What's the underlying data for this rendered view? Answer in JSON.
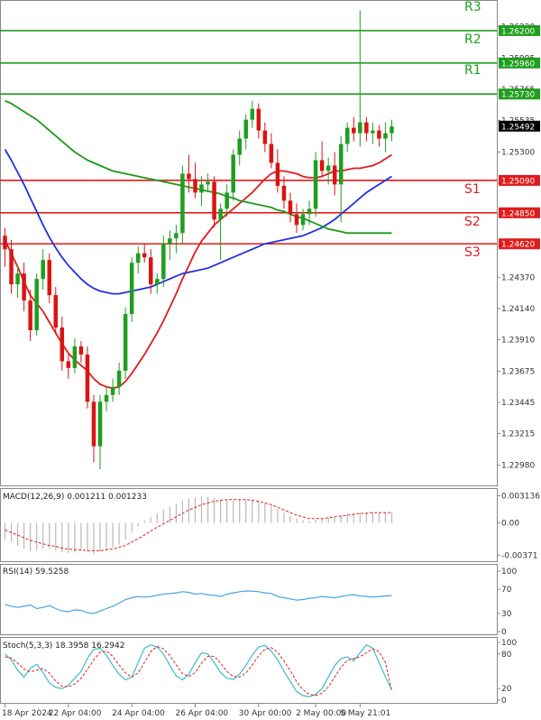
{
  "colors": {
    "bull": "#1f9e1f",
    "bear": "#d91414",
    "resistance": "#1f9e1f",
    "support": "#e01c1c",
    "ma_fast": "#e01c1c",
    "ma_mid": "#2030e0",
    "ma_slow": "#1a9a1a",
    "macd_hist": "#b8b8b8",
    "macd_signal": "#e01c1c",
    "rsi": "#4aa3e0",
    "stoch_main": "#3dbccc",
    "stoch_signal": "#e01c1c",
    "price_tag_bg": "#000000"
  },
  "chart_data": [
    {
      "type": "candlestick",
      "pane": "main",
      "ylim": [
        1.2285,
        1.264
      ],
      "y_ticks": [
        "1.26230",
        "1.25995",
        "1.25765",
        "1.25535",
        "1.25300",
        "1.25070",
        "1.24840",
        "1.24610",
        "1.24370",
        "1.24140",
        "1.23910",
        "1.23675",
        "1.23445",
        "1.23215",
        "1.22980"
      ],
      "current_price": "1.25492",
      "levels": [
        {
          "name": "R3",
          "value": 1.262,
          "label": "1.26200",
          "kind": "resistance"
        },
        {
          "name": "R2",
          "value": 1.2596,
          "label": "1.25960",
          "kind": "resistance"
        },
        {
          "name": "R1",
          "value": 1.2573,
          "label": "1.25730",
          "kind": "resistance"
        },
        {
          "name": "S1",
          "value": 1.2509,
          "label": "1.25090",
          "kind": "support"
        },
        {
          "name": "S2",
          "value": 1.2485,
          "label": "1.24850",
          "kind": "support"
        },
        {
          "name": "S3",
          "value": 1.2462,
          "label": "1.24620",
          "kind": "support"
        }
      ],
      "x_labels": [
        "18 Apr 2024",
        "22 Apr 04:00",
        "24 Apr 04:00",
        "26 Apr 04:00",
        "30 Apr 00:00",
        "2 May 00:00",
        "5 May 21:01"
      ],
      "candles": [
        [
          1.2468,
          1.2474,
          1.2445,
          1.2458
        ],
        [
          1.2458,
          1.2465,
          1.2425,
          1.2432
        ],
        [
          1.2432,
          1.2446,
          1.2422,
          1.244
        ],
        [
          1.244,
          1.2448,
          1.2412,
          1.242
        ],
        [
          1.242,
          1.2428,
          1.239,
          1.2398
        ],
        [
          1.2398,
          1.244,
          1.2394,
          1.2436
        ],
        [
          1.2436,
          1.2458,
          1.2428,
          1.245
        ],
        [
          1.245,
          1.2455,
          1.2418,
          1.2424
        ],
        [
          1.2424,
          1.243,
          1.2395,
          1.24
        ],
        [
          1.24,
          1.2408,
          1.2368,
          1.2375
        ],
        [
          1.2375,
          1.238,
          1.2362,
          1.237
        ],
        [
          1.237,
          1.2392,
          1.2366,
          1.2386
        ],
        [
          1.2386,
          1.239,
          1.2374,
          1.238
        ],
        [
          1.238,
          1.2386,
          1.234,
          1.2345
        ],
        [
          1.2345,
          1.235,
          1.23,
          1.2312
        ],
        [
          1.2312,
          1.235,
          1.2295,
          1.2345
        ],
        [
          1.2345,
          1.2356,
          1.2338,
          1.235
        ],
        [
          1.235,
          1.2362,
          1.2345,
          1.2356
        ],
        [
          1.2356,
          1.2374,
          1.235,
          1.2368
        ],
        [
          1.2368,
          1.2415,
          1.2362,
          1.241
        ],
        [
          1.241,
          1.2452,
          1.2404,
          1.2448
        ],
        [
          1.2448,
          1.246,
          1.244,
          1.2455
        ],
        [
          1.2455,
          1.2462,
          1.2448,
          1.2452
        ],
        [
          1.2452,
          1.2458,
          1.2425,
          1.2432
        ],
        [
          1.2432,
          1.244,
          1.2425,
          1.2436
        ],
        [
          1.2436,
          1.2468,
          1.243,
          1.2462
        ],
        [
          1.2462,
          1.2472,
          1.245,
          1.2466
        ],
        [
          1.2466,
          1.2476,
          1.2455,
          1.247
        ],
        [
          1.247,
          1.252,
          1.2462,
          1.2514
        ],
        [
          1.2514,
          1.2528,
          1.25,
          1.251
        ],
        [
          1.251,
          1.2522,
          1.2496,
          1.25
        ],
        [
          1.25,
          1.2512,
          1.249,
          1.2506
        ],
        [
          1.2506,
          1.2514,
          1.25,
          1.2508
        ],
        [
          1.2508,
          1.2512,
          1.2474,
          1.248
        ],
        [
          1.248,
          1.2492,
          1.245,
          1.2488
        ],
        [
          1.2488,
          1.2506,
          1.2482,
          1.25
        ],
        [
          1.25,
          1.2532,
          1.2494,
          1.2528
        ],
        [
          1.2528,
          1.2546,
          1.252,
          1.254
        ],
        [
          1.254,
          1.2558,
          1.2532,
          1.2554
        ],
        [
          1.2554,
          1.2568,
          1.2548,
          1.2562
        ],
        [
          1.2562,
          1.2566,
          1.254,
          1.2546
        ],
        [
          1.2546,
          1.2552,
          1.253,
          1.2536
        ],
        [
          1.2536,
          1.2544,
          1.2518,
          1.2522
        ],
        [
          1.2522,
          1.2532,
          1.25,
          1.2505
        ],
        [
          1.2505,
          1.2512,
          1.2488,
          1.2494
        ],
        [
          1.2494,
          1.25,
          1.2478,
          1.2484
        ],
        [
          1.2484,
          1.2492,
          1.247,
          1.2476
        ],
        [
          1.2476,
          1.2488,
          1.2472,
          1.2484
        ],
        [
          1.2484,
          1.2494,
          1.2476,
          1.2488
        ],
        [
          1.2488,
          1.253,
          1.2482,
          1.2524
        ],
        [
          1.2524,
          1.2538,
          1.2512,
          1.2516
        ],
        [
          1.2516,
          1.2526,
          1.2506,
          1.252
        ],
        [
          1.252,
          1.253,
          1.2498,
          1.2506
        ],
        [
          1.2506,
          1.2542,
          1.2478,
          1.2536
        ],
        [
          1.2536,
          1.2552,
          1.253,
          1.2548
        ],
        [
          1.2548,
          1.2556,
          1.2538,
          1.2544
        ],
        [
          1.2544,
          1.2635,
          1.2534,
          1.2552
        ],
        [
          1.2552,
          1.2556,
          1.2538,
          1.2544
        ],
        [
          1.2544,
          1.2552,
          1.2536,
          1.2546
        ],
        [
          1.2546,
          1.255,
          1.2534,
          1.254
        ],
        [
          1.254,
          1.2552,
          1.253,
          1.2544
        ],
        [
          1.2544,
          1.2554,
          1.2538,
          1.2549
        ]
      ],
      "moving_averages": [
        {
          "role": "fast",
          "values": [
            1.2465,
            1.2455,
            1.2445,
            1.2434,
            1.2424,
            1.2418,
            1.2412,
            1.2404,
            1.2396,
            1.2388,
            1.2381,
            1.2376,
            1.2372,
            1.2368,
            1.2362,
            1.2358,
            1.2356,
            1.2355,
            1.2356,
            1.236,
            1.2366,
            1.2373,
            1.238,
            1.2388,
            1.2396,
            1.2405,
            1.2415,
            1.2425,
            1.2436,
            1.2446,
            1.2456,
            1.2464,
            1.247,
            1.2476,
            1.248,
            1.2484,
            1.2488,
            1.2492,
            1.2496,
            1.25,
            1.2505,
            1.251,
            1.2514,
            1.2516,
            1.2516,
            1.2515,
            1.2514,
            1.2512,
            1.2511,
            1.2511,
            1.2512,
            1.2514,
            1.2516,
            1.2516,
            1.2517,
            1.2518,
            1.2518,
            1.2519,
            1.252,
            1.2522,
            1.2525,
            1.2528
          ]
        },
        {
          "role": "mid",
          "values": [
            1.2532,
            1.2524,
            1.2515,
            1.2506,
            1.2496,
            1.2486,
            1.2476,
            1.2467,
            1.2459,
            1.2452,
            1.2446,
            1.2441,
            1.2436,
            1.2432,
            1.2429,
            1.2427,
            1.2426,
            1.2425,
            1.2425,
            1.2426,
            1.2427,
            1.2428,
            1.2429,
            1.243,
            1.2432,
            1.2434,
            1.2436,
            1.2438,
            1.244,
            1.2441,
            1.2442,
            1.2443,
            1.2444,
            1.2446,
            1.2448,
            1.245,
            1.2452,
            1.2454,
            1.2456,
            1.2458,
            1.246,
            1.2462,
            1.2463,
            1.2464,
            1.2465,
            1.2466,
            1.2467,
            1.2468,
            1.247,
            1.2472,
            1.2474,
            1.2477,
            1.248,
            1.2484,
            1.2488,
            1.2492,
            1.2496,
            1.25,
            1.2503,
            1.2506,
            1.2509,
            1.2512
          ]
        },
        {
          "role": "slow",
          "values": [
            1.2568,
            1.2566,
            1.2563,
            1.256,
            1.2557,
            1.2554,
            1.255,
            1.2546,
            1.2542,
            1.2538,
            1.2534,
            1.253,
            1.2527,
            1.2524,
            1.2522,
            1.252,
            1.2518,
            1.2516,
            1.2515,
            1.2514,
            1.2513,
            1.2512,
            1.2511,
            1.251,
            1.2509,
            1.2508,
            1.2507,
            1.2506,
            1.2505,
            1.2504,
            1.2503,
            1.2502,
            1.2501,
            1.25,
            1.2499,
            1.2497,
            1.2496,
            1.2494,
            1.2493,
            1.2492,
            1.2491,
            1.249,
            1.2489,
            1.2487,
            1.2486,
            1.2484,
            1.2482,
            1.2481,
            1.2479,
            1.2477,
            1.2475,
            1.2473,
            1.2472,
            1.2471,
            1.247,
            1.247,
            1.247,
            1.247,
            1.247,
            1.247,
            1.247,
            1.247
          ]
        }
      ]
    },
    {
      "type": "histogram_line",
      "pane": "macd",
      "title": "MACD(12,26,9) 0.001211 0.001233",
      "ylim": [
        -0.0042,
        0.0036
      ],
      "y_ticks": [
        "0.003136",
        "0.00",
        "-0.00371"
      ],
      "histogram": [
        -0.0019,
        -0.0022,
        -0.0026,
        -0.003,
        -0.0033,
        -0.0032,
        -0.003,
        -0.003,
        -0.0032,
        -0.0034,
        -0.0035,
        -0.0034,
        -0.0032,
        -0.0033,
        -0.0036,
        -0.0034,
        -0.0031,
        -0.0028,
        -0.0025,
        -0.0019,
        -0.0011,
        -0.0004,
        0.0003,
        0.0007,
        0.0011,
        0.0015,
        0.0019,
        0.0022,
        0.0026,
        0.0028,
        0.0029,
        0.003,
        0.003,
        0.0029,
        0.0027,
        0.0026,
        0.0026,
        0.0027,
        0.0027,
        0.0027,
        0.0025,
        0.0023,
        0.002,
        0.0016,
        0.0012,
        0.0008,
        0.0005,
        0.0003,
        0.0002,
        0.0004,
        0.0005,
        0.0006,
        0.0006,
        0.0008,
        0.001,
        0.0011,
        0.0012,
        0.0012,
        0.0012,
        0.0012,
        0.0012,
        0.0012
      ],
      "signal": [
        -0.0008,
        -0.0011,
        -0.0014,
        -0.0017,
        -0.002,
        -0.0022,
        -0.0024,
        -0.0026,
        -0.0027,
        -0.0029,
        -0.003,
        -0.0031,
        -0.0031,
        -0.0032,
        -0.0032,
        -0.0032,
        -0.0031,
        -0.003,
        -0.0028,
        -0.0026,
        -0.0022,
        -0.0018,
        -0.0014,
        -0.0009,
        -0.0005,
        -0.0001,
        0.0003,
        0.0007,
        0.0011,
        0.0015,
        0.0018,
        0.0021,
        0.0023,
        0.0025,
        0.0026,
        0.0027,
        0.0027,
        0.0027,
        0.0027,
        0.0026,
        0.0025,
        0.0023,
        0.0021,
        0.0018,
        0.0015,
        0.0012,
        0.0009,
        0.0007,
        0.0005,
        0.0005,
        0.0005,
        0.0006,
        0.0007,
        0.0008,
        0.0009,
        0.001,
        0.0011,
        0.0011,
        0.0012,
        0.0012,
        0.0012,
        0.0012
      ]
    },
    {
      "type": "line",
      "pane": "rsi",
      "title": "RSI(14) 59.5258",
      "ylim": [
        0,
        100
      ],
      "y_ticks": [
        "100",
        "70",
        "30",
        "0"
      ],
      "values": [
        45,
        42,
        40,
        42,
        44,
        38,
        40,
        43,
        38,
        34,
        33,
        36,
        35,
        31,
        30,
        34,
        38,
        42,
        47,
        53,
        56,
        58,
        57,
        58,
        60,
        62,
        63,
        64,
        66,
        65,
        62,
        63,
        61,
        60,
        58,
        62,
        64,
        66,
        67,
        67,
        66,
        64,
        63,
        58,
        56,
        54,
        52,
        53,
        55,
        56,
        58,
        57,
        56,
        58,
        60,
        61,
        59,
        58,
        57,
        58,
        59,
        59.5
      ]
    },
    {
      "type": "line",
      "pane": "stoch",
      "title": "Stoch(5,3,3) 18.3958 16.2942",
      "ylim": [
        0,
        100
      ],
      "y_ticks": [
        "100",
        "80",
        "20",
        "0"
      ],
      "main": [
        80,
        70,
        52,
        40,
        55,
        62,
        48,
        30,
        22,
        20,
        26,
        38,
        50,
        72,
        88,
        90,
        78,
        60,
        45,
        35,
        40,
        65,
        90,
        96,
        92,
        80,
        60,
        42,
        35,
        45,
        65,
        82,
        80,
        65,
        48,
        38,
        36,
        45,
        60,
        78,
        92,
        95,
        85,
        70,
        50,
        32,
        15,
        8,
        6,
        10,
        20,
        40,
        60,
        72,
        75,
        68,
        82,
        96,
        90,
        65,
        40,
        18
      ],
      "signal": [
        75,
        73,
        64,
        54,
        49,
        52,
        55,
        47,
        33,
        24,
        23,
        28,
        38,
        53,
        70,
        83,
        85,
        76,
        61,
        47,
        40,
        47,
        65,
        84,
        93,
        89,
        77,
        61,
        46,
        41,
        48,
        64,
        76,
        76,
        64,
        50,
        41,
        40,
        47,
        61,
        77,
        88,
        91,
        83,
        68,
        51,
        32,
        18,
        10,
        8,
        12,
        23,
        40,
        57,
        69,
        72,
        75,
        82,
        89,
        84,
        65,
        16
      ]
    }
  ]
}
